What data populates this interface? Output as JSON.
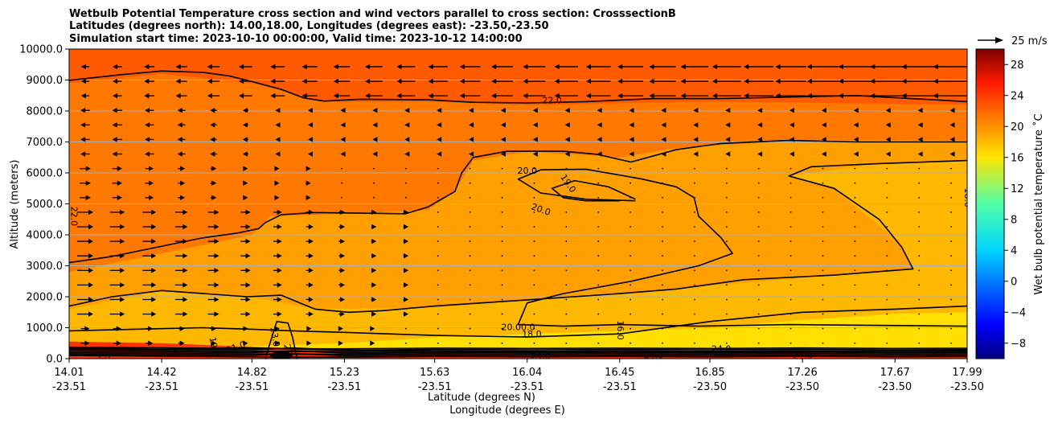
{
  "chart_data": {
    "type": "heatmap",
    "title_lines": [
      "Wetbulb Potential Temperature cross section and wind vectors parallel to cross section: CrosssectionB",
      "Latitudes (degrees north): 14.00,18.00, Longitudes (degrees east): -23.50,-23.50",
      "Simulation start time: 2023-10-10 00:00:00, Valid time: 2023-10-12 14:00:00"
    ],
    "xlabel_lat": "Latitude (degrees N)",
    "xlabel_lon": "Longitude (degrees E)",
    "ylabel": "Altitude (meters)",
    "ylim": [
      0,
      10000
    ],
    "xlim": [
      14.01,
      17.99
    ],
    "x_ticks": [
      {
        "lat": "14.01",
        "lon": "-23.51",
        "v": 14.01
      },
      {
        "lat": "14.42",
        "lon": "-23.51",
        "v": 14.42
      },
      {
        "lat": "14.82",
        "lon": "-23.51",
        "v": 14.82
      },
      {
        "lat": "15.23",
        "lon": "-23.51",
        "v": 15.23
      },
      {
        "lat": "15.63",
        "lon": "-23.51",
        "v": 15.63
      },
      {
        "lat": "16.04",
        "lon": "-23.51",
        "v": 16.04
      },
      {
        "lat": "16.45",
        "lon": "-23.51",
        "v": 16.45
      },
      {
        "lat": "16.85",
        "lon": "-23.50",
        "v": 16.85
      },
      {
        "lat": "17.26",
        "lon": "-23.50",
        "v": 17.26
      },
      {
        "lat": "17.67",
        "lon": "-23.50",
        "v": 17.67
      },
      {
        "lat": "17.99",
        "lon": "-23.50",
        "v": 17.99
      }
    ],
    "y_ticks": [
      {
        "label": "0.0",
        "v": 0
      },
      {
        "label": "1000.0",
        "v": 1000
      },
      {
        "label": "2000.0",
        "v": 2000
      },
      {
        "label": "3000.0",
        "v": 3000
      },
      {
        "label": "4000.0",
        "v": 4000
      },
      {
        "label": "5000.0",
        "v": 5000
      },
      {
        "label": "6000.0",
        "v": 6000
      },
      {
        "label": "7000.0",
        "v": 7000
      },
      {
        "label": "8000.0",
        "v": 8000
      },
      {
        "label": "9000.0",
        "v": 9000
      },
      {
        "label": "10000.0",
        "v": 10000
      }
    ],
    "grid": "horizontal",
    "colorbar": {
      "label": "Wet bulb potential temperature ˚C",
      "range": [
        -10,
        30
      ],
      "ticks": [
        {
          "label": "−8",
          "v": -8
        },
        {
          "label": "−4",
          "v": -4
        },
        {
          "label": "0",
          "v": 0
        },
        {
          "label": "4",
          "v": 4
        },
        {
          "label": "8",
          "v": 8
        },
        {
          "label": "12",
          "v": 12
        },
        {
          "label": "16",
          "v": 16
        },
        {
          "label": "20",
          "v": 20
        },
        {
          "label": "24",
          "v": 24
        },
        {
          "label": "28",
          "v": 28
        }
      ],
      "colormap": "jet"
    },
    "vector_key": {
      "label": "25 m/s",
      "speed": 25
    },
    "field_regions": [
      {
        "name": "upper",
        "value": 23,
        "color": "#ff5a00"
      },
      {
        "name": "mid",
        "value": 21.5,
        "color": "#ff7800"
      },
      {
        "name": "core",
        "value": 19.5,
        "color": "#ffa000"
      },
      {
        "name": "lower",
        "value": 18.5,
        "color": "#ffb800"
      },
      {
        "name": "base",
        "value": 17.5,
        "color": "#ffe000"
      },
      {
        "name": "surface",
        "value": 24,
        "color": "#ff3300"
      }
    ],
    "contours": [
      {
        "level": 22,
        "label": "22.0",
        "points": [
          [
            14.01,
            8990
          ],
          [
            14.25,
            9180
          ],
          [
            14.42,
            9290
          ],
          [
            14.6,
            9250
          ],
          [
            14.72,
            9130
          ],
          [
            14.82,
            8950
          ],
          [
            14.95,
            8700
          ],
          [
            15.05,
            8420
          ],
          [
            15.14,
            8320
          ],
          [
            15.3,
            8380
          ],
          [
            15.6,
            8360
          ],
          [
            15.8,
            8280
          ],
          [
            16.04,
            8260
          ],
          [
            16.3,
            8300
          ],
          [
            16.6,
            8400
          ],
          [
            16.9,
            8400
          ],
          [
            17.2,
            8450
          ],
          [
            17.5,
            8500
          ],
          [
            17.99,
            8300
          ]
        ]
      },
      {
        "level": 22,
        "label": "22.0",
        "points": [
          [
            14.01,
            3100
          ],
          [
            14.2,
            3300
          ],
          [
            14.4,
            3600
          ],
          [
            14.6,
            3900
          ],
          [
            14.75,
            4050
          ],
          [
            14.85,
            4200
          ],
          [
            14.88,
            4400
          ],
          [
            14.95,
            4650
          ],
          [
            15.1,
            4720
          ],
          [
            15.3,
            4700
          ],
          [
            15.5,
            4680
          ],
          [
            15.6,
            4900
          ],
          [
            15.72,
            5400
          ],
          [
            15.75,
            6000
          ],
          [
            15.8,
            6500
          ],
          [
            15.95,
            6700
          ],
          [
            16.2,
            6700
          ],
          [
            16.35,
            6600
          ],
          [
            16.5,
            6350
          ],
          [
            16.6,
            6550
          ],
          [
            16.7,
            6750
          ],
          [
            16.9,
            6950
          ],
          [
            17.2,
            7050
          ],
          [
            17.5,
            7000
          ],
          [
            17.99,
            7000
          ]
        ]
      },
      {
        "level": 20,
        "label": "20.0",
        "points": [
          [
            16.52,
            5100
          ],
          [
            16.3,
            5150
          ],
          [
            16.1,
            5350
          ],
          [
            16.0,
            5800
          ],
          [
            16.1,
            6100
          ],
          [
            16.3,
            6120
          ],
          [
            16.55,
            5800
          ],
          [
            16.7,
            5550
          ],
          [
            16.78,
            5200
          ],
          [
            16.8,
            4600
          ],
          [
            16.9,
            3900
          ],
          [
            16.95,
            3400
          ],
          [
            16.8,
            3000
          ],
          [
            16.5,
            2500
          ],
          [
            16.2,
            2100
          ],
          [
            16.04,
            1800
          ],
          [
            16.0,
            1100
          ],
          [
            16.2,
            1050
          ],
          [
            16.45,
            1100
          ],
          [
            16.8,
            1050
          ],
          [
            17.2,
            1100
          ],
          [
            17.99,
            1050
          ]
        ]
      },
      {
        "level": 19,
        "label": "19.0",
        "points": [
          [
            16.45,
            5100
          ],
          [
            16.3,
            5100
          ],
          [
            16.2,
            5200
          ],
          [
            16.15,
            5500
          ],
          [
            16.25,
            5750
          ],
          [
            16.4,
            5550
          ],
          [
            16.52,
            5150
          ]
        ]
      },
      {
        "level": 22,
        "label": "",
        "points": [
          [
            17.99,
            6400
          ],
          [
            17.6,
            6300
          ],
          [
            17.3,
            6200
          ],
          [
            17.2,
            5900
          ],
          [
            17.4,
            5500
          ],
          [
            17.6,
            4500
          ],
          [
            17.7,
            3600
          ],
          [
            17.75,
            2900
          ],
          [
            17.4,
            2700
          ],
          [
            17.0,
            2550
          ],
          [
            16.7,
            2250
          ],
          [
            16.45,
            2100
          ],
          [
            16.04,
            1900
          ],
          [
            15.63,
            1700
          ],
          [
            15.4,
            1550
          ],
          [
            15.25,
            1500
          ],
          [
            15.1,
            1600
          ],
          [
            14.95,
            2050
          ],
          [
            14.8,
            2000
          ],
          [
            14.42,
            2200
          ],
          [
            14.2,
            2000
          ],
          [
            14.01,
            1700
          ]
        ]
      },
      {
        "level": 21,
        "label": "",
        "points": [
          [
            14.01,
            900
          ],
          [
            14.3,
            950
          ],
          [
            14.6,
            1000
          ],
          [
            14.82,
            950
          ],
          [
            15.0,
            900
          ],
          [
            15.23,
            850
          ],
          [
            15.63,
            750
          ],
          [
            16.04,
            700
          ],
          [
            16.45,
            800
          ],
          [
            16.85,
            1200
          ],
          [
            17.26,
            1500
          ],
          [
            17.67,
            1600
          ],
          [
            17.99,
            1700
          ]
        ]
      },
      {
        "level": 24,
        "label": "24.0",
        "points": [
          [
            14.01,
            350
          ],
          [
            14.4,
            300
          ],
          [
            14.8,
            350
          ],
          [
            15.23,
            280
          ],
          [
            15.63,
            250
          ],
          [
            16.04,
            230
          ],
          [
            16.45,
            250
          ],
          [
            16.85,
            230
          ],
          [
            17.26,
            240
          ],
          [
            17.67,
            250
          ],
          [
            17.99,
            250
          ]
        ]
      }
    ],
    "inline_labels": [
      "22.0",
      "20.0",
      "19.0",
      "20.0",
      "18.0",
      "22.0",
      "20.00.0",
      "18.0",
      "16.0",
      "24.0",
      "24.0",
      "24.0",
      "23.0",
      "24.0",
      "19.0",
      "21.0",
      "23.0",
      "24.0",
      "24.0",
      "23.0"
    ]
  }
}
